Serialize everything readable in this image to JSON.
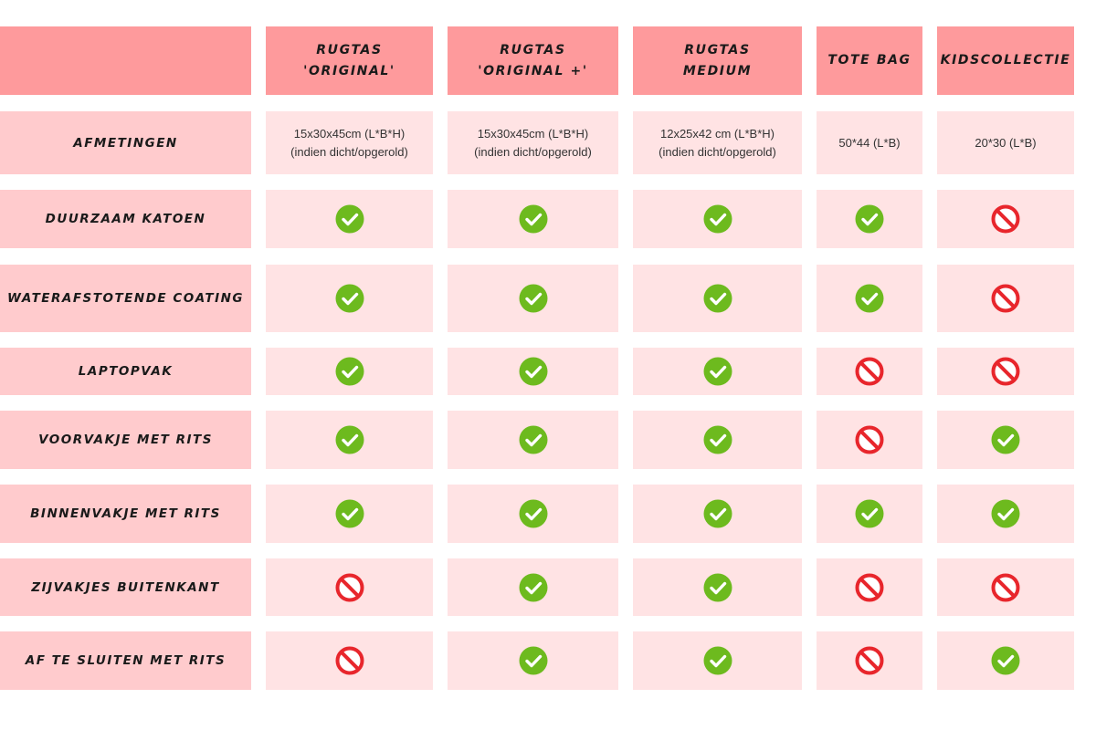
{
  "colors": {
    "header_bg": "#fe9a9c",
    "label_bg": "#ffcbcd",
    "cell_bg": "#ffe3e4",
    "check": "#6dba1e",
    "no": "#e8262c"
  },
  "table": {
    "columns": [
      "Rugtas\n'Original'",
      "Rugtas\n'Original +'",
      "Rugtas\nMedium",
      "Tote bag",
      "Kidscollectie"
    ],
    "rows": [
      {
        "label": "Afmetingen",
        "cells": [
          {
            "text": "15x30x45cm (L*B*H)\n(indien dicht/opgerold)"
          },
          {
            "text": "15x30x45cm (L*B*H)\n(indien dicht/opgerold)"
          },
          {
            "text": "12x25x42 cm (L*B*H)\n(indien dicht/opgerold)"
          },
          {
            "text": "50*44 (L*B)"
          },
          {
            "text": "20*30 (L*B)"
          }
        ]
      },
      {
        "label": "Duurzaam katoen",
        "cells": [
          {
            "icon": "check-circle-icon"
          },
          {
            "icon": "check-circle-icon"
          },
          {
            "icon": "check-circle-icon"
          },
          {
            "icon": "check-circle-icon"
          },
          {
            "icon": "prohibited-icon"
          }
        ]
      },
      {
        "label": "Waterafstotende coating",
        "cells": [
          {
            "icon": "check-circle-icon"
          },
          {
            "icon": "check-circle-icon"
          },
          {
            "icon": "check-circle-icon"
          },
          {
            "icon": "check-circle-icon"
          },
          {
            "icon": "prohibited-icon"
          }
        ]
      },
      {
        "label": "Laptopvak",
        "cells": [
          {
            "icon": "check-circle-icon"
          },
          {
            "icon": "check-circle-icon"
          },
          {
            "icon": "check-circle-icon"
          },
          {
            "icon": "prohibited-icon"
          },
          {
            "icon": "prohibited-icon"
          }
        ]
      },
      {
        "label": "Voorvakje met rits",
        "cells": [
          {
            "icon": "check-circle-icon"
          },
          {
            "icon": "check-circle-icon"
          },
          {
            "icon": "check-circle-icon"
          },
          {
            "icon": "prohibited-icon"
          },
          {
            "icon": "check-circle-icon"
          }
        ]
      },
      {
        "label": "Binnenvakje met rits",
        "cells": [
          {
            "icon": "check-circle-icon"
          },
          {
            "icon": "check-circle-icon"
          },
          {
            "icon": "check-circle-icon"
          },
          {
            "icon": "check-circle-icon"
          },
          {
            "icon": "check-circle-icon"
          }
        ]
      },
      {
        "label": "Zijvakjes buitenkant",
        "cells": [
          {
            "icon": "prohibited-icon"
          },
          {
            "icon": "check-circle-icon"
          },
          {
            "icon": "check-circle-icon"
          },
          {
            "icon": "prohibited-icon"
          },
          {
            "icon": "prohibited-icon"
          }
        ]
      },
      {
        "label": "Af te sluiten met rits",
        "cells": [
          {
            "icon": "prohibited-icon"
          },
          {
            "icon": "check-circle-icon"
          },
          {
            "icon": "check-circle-icon"
          },
          {
            "icon": "prohibited-icon"
          },
          {
            "icon": "check-circle-icon"
          }
        ]
      }
    ]
  }
}
